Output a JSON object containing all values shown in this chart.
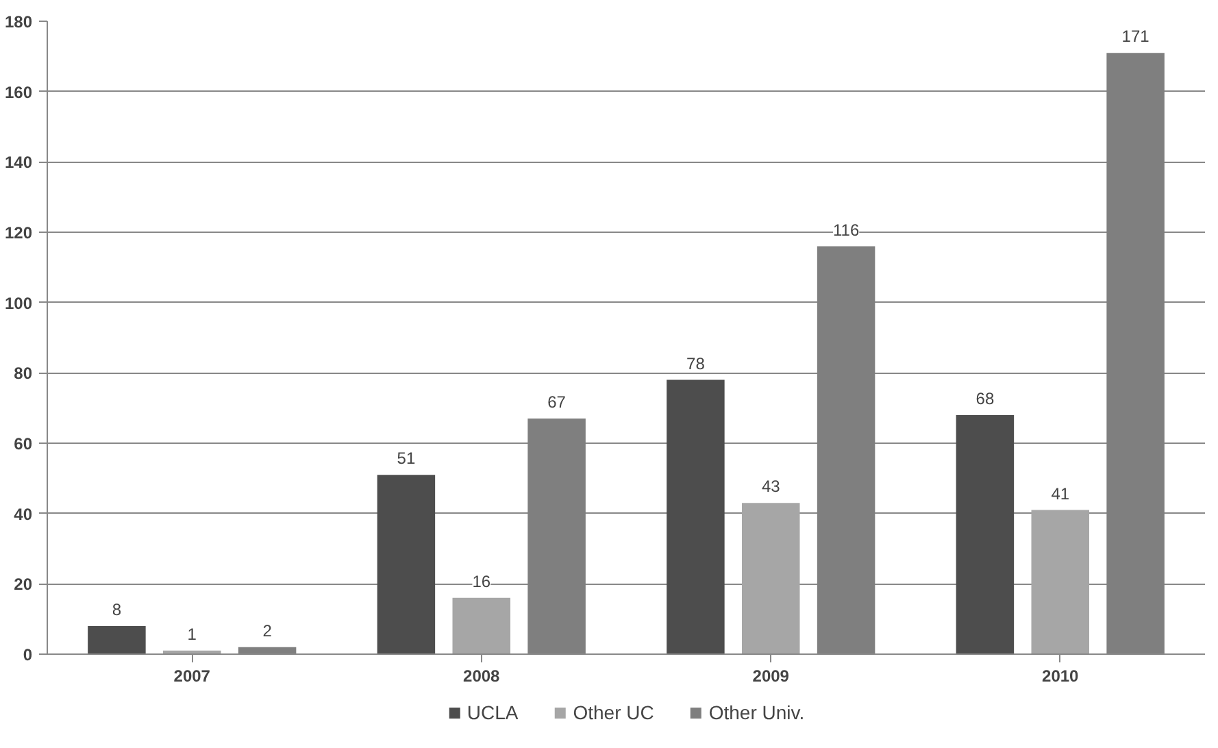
{
  "chart_data": {
    "type": "bar",
    "categories": [
      "2007",
      "2008",
      "2009",
      "2010"
    ],
    "series": [
      {
        "name": "UCLA",
        "color": "#4d4d4d",
        "values": [
          8,
          51,
          78,
          68
        ]
      },
      {
        "name": "Other UC",
        "color": "#a6a6a6",
        "values": [
          1,
          16,
          43,
          41
        ]
      },
      {
        "name": "Other Univ.",
        "color": "#7f7f7f",
        "values": [
          2,
          67,
          116,
          171
        ]
      }
    ],
    "ylim": [
      0,
      180
    ],
    "yticks": [
      0,
      20,
      40,
      60,
      80,
      100,
      120,
      140,
      160,
      180
    ],
    "grid": "y",
    "legend": "bottom",
    "data_labels": true
  }
}
